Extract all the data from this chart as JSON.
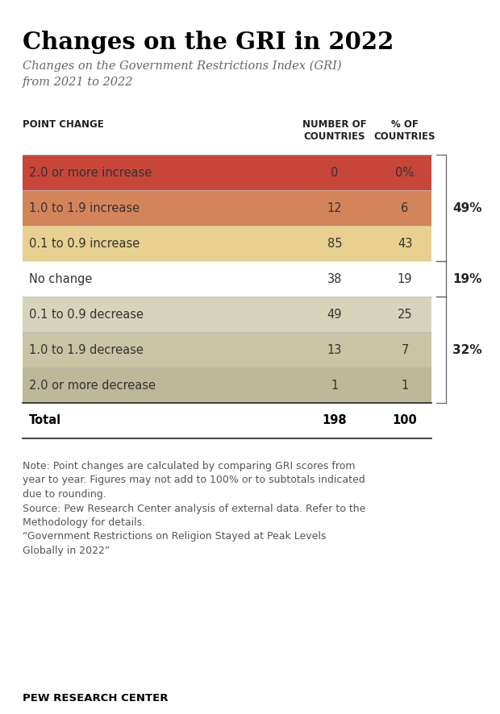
{
  "title": "Changes on the GRI in 2022",
  "subtitle": "Changes on the Government Restrictions Index (GRI)\nfrom 2021 to 2022",
  "col_headers": [
    "POINT CHANGE",
    "NUMBER OF\nCOUNTRIES",
    "% OF\nCOUNTRIES"
  ],
  "rows": [
    {
      "label": "2.0 or more increase",
      "number": "0",
      "pct": "0%",
      "bg_color": "#C8453A",
      "text_color": "#333333",
      "bold": false
    },
    {
      "label": "1.0 to 1.9 increase",
      "number": "12",
      "pct": "6",
      "bg_color": "#D4845A",
      "text_color": "#333333",
      "bold": false
    },
    {
      "label": "0.1 to 0.9 increase",
      "number": "85",
      "pct": "43",
      "bg_color": "#E8D090",
      "text_color": "#333333",
      "bold": false
    },
    {
      "label": "No change",
      "number": "38",
      "pct": "19",
      "bg_color": "#FFFFFF",
      "text_color": "#333333",
      "bold": false
    },
    {
      "label": "0.1 to 0.9 decrease",
      "number": "49",
      "pct": "25",
      "bg_color": "#D8D4BC",
      "text_color": "#333333",
      "bold": false
    },
    {
      "label": "1.0 to 1.9 decrease",
      "number": "13",
      "pct": "7",
      "bg_color": "#C8C4A4",
      "text_color": "#333333",
      "bold": false
    },
    {
      "label": "2.0 or more decrease",
      "number": "1",
      "pct": "1",
      "bg_color": "#BCB898",
      "text_color": "#333333",
      "bold": false
    },
    {
      "label": "Total",
      "number": "198",
      "pct": "100",
      "bg_color": "#FFFFFF",
      "text_color": "#000000",
      "bold": true
    }
  ],
  "brackets": [
    {
      "rows": [
        0,
        2
      ],
      "label": "49%"
    },
    {
      "rows": [
        3,
        3
      ],
      "label": "19%"
    },
    {
      "rows": [
        4,
        6
      ],
      "label": "32%"
    }
  ],
  "note": "Note: Point changes are calculated by comparing GRI scores from\nyear to year. Figures may not add to 100% or to subtotals indicated\ndue to rounding.\nSource: Pew Research Center analysis of external data. Refer to the\nMethodology for details.\n“Government Restrictions on Religion Stayed at Peak Levels\nGlobally in 2022”",
  "footer": "PEW RESEARCH CENTER",
  "bg_color": "#FFFFFF"
}
